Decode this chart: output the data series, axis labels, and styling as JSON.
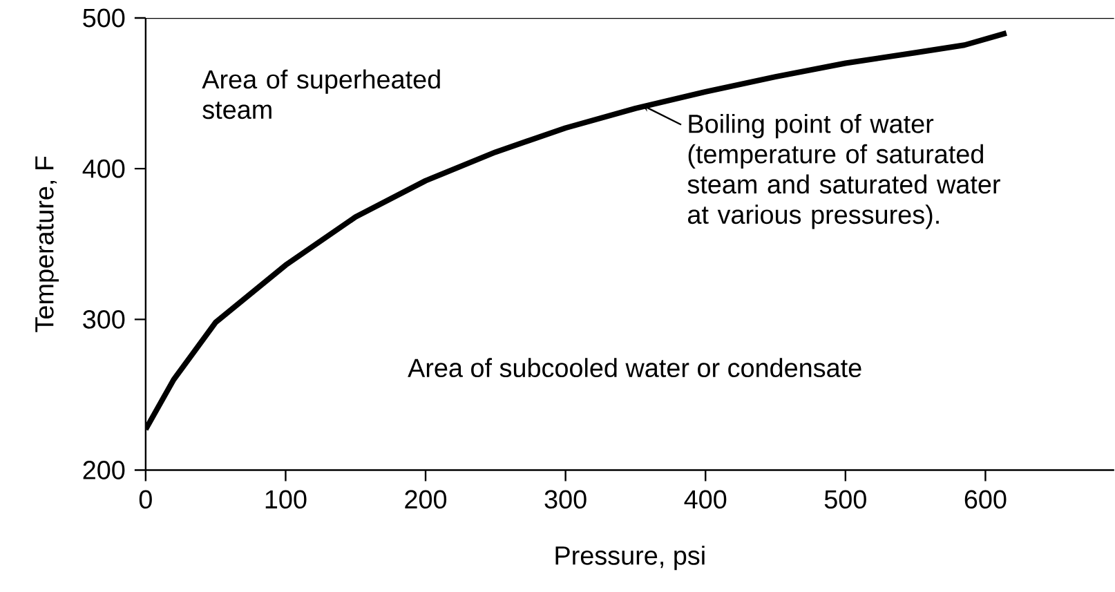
{
  "chart_data": {
    "type": "line",
    "xlabel": "Pressure, psi",
    "ylabel": "Temperature, F",
    "x": [
      0,
      20,
      50,
      100,
      150,
      200,
      250,
      300,
      350,
      400,
      450,
      500,
      550,
      585,
      615
    ],
    "series": [
      {
        "color": "#000000",
        "values": [
          227,
          260,
          298,
          336,
          368,
          392,
          411,
          427,
          440,
          451,
          461,
          470,
          477,
          482,
          490
        ]
      }
    ],
    "xlim": [
      0,
      692
    ],
    "ylim": [
      200,
      500
    ],
    "xticks": [
      0,
      100,
      200,
      300,
      400,
      500,
      600
    ],
    "yticks": [
      200,
      300,
      400,
      500
    ],
    "annotations": [
      "Area of superheated steam",
      {
        "text": "Boiling point of water (temperature of saturated steam and saturated water at various pressures).",
        "x": 355,
        "y": 442
      },
      "Area of subcooled water or condensate"
    ]
  }
}
